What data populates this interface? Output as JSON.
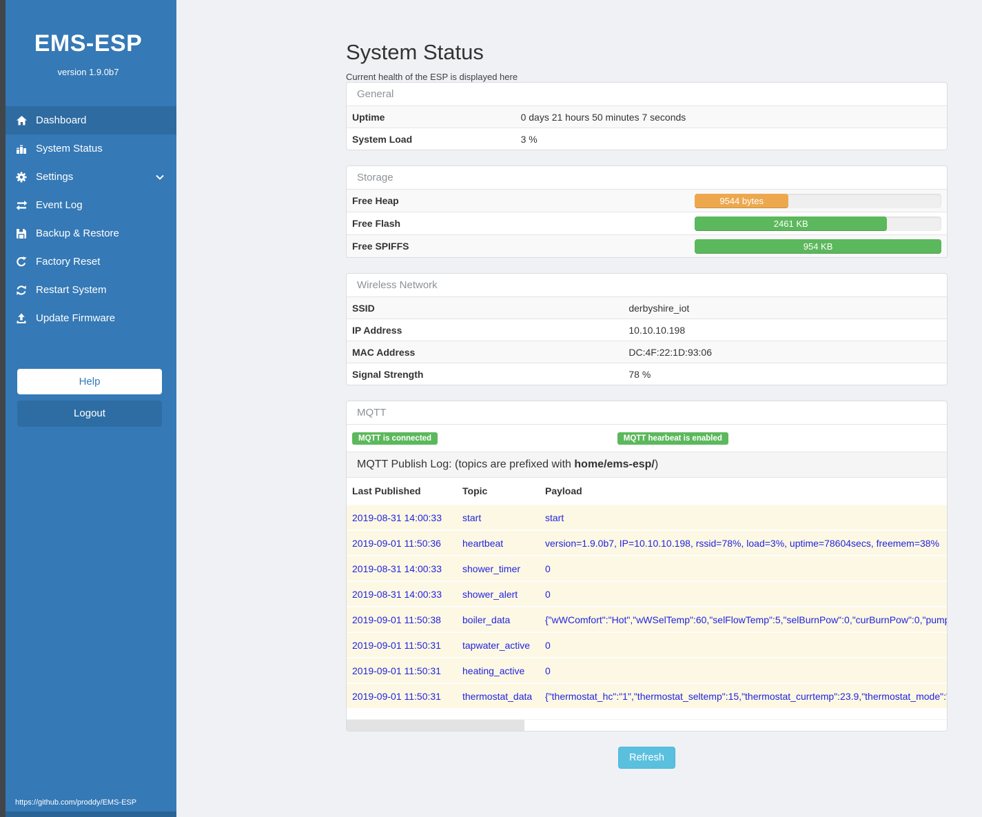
{
  "sidebar": {
    "title": "EMS-ESP",
    "version": "version 1.9.0b7",
    "menu": [
      {
        "label": "Dashboard",
        "icon": "home-icon",
        "active": true
      },
      {
        "label": "System Status",
        "icon": "system-status-icon",
        "active": false
      },
      {
        "label": "Settings",
        "icon": "gear-icon",
        "active": false,
        "chevron": true
      },
      {
        "label": "Event Log",
        "icon": "exchange-icon",
        "active": false
      },
      {
        "label": "Backup & Restore",
        "icon": "save-icon",
        "active": false
      },
      {
        "label": "Factory Reset",
        "icon": "rotate-icon",
        "active": false
      },
      {
        "label": "Restart System",
        "icon": "refresh-icon",
        "active": false
      },
      {
        "label": "Update Firmware",
        "icon": "upload-icon",
        "active": false
      }
    ],
    "help_label": "Help",
    "logout_label": "Logout",
    "footer_link": "https://github.com/proddy/EMS-ESP"
  },
  "page": {
    "title": "System Status",
    "subtitle": "Current health of the ESP is displayed here",
    "refresh_label": "Refresh"
  },
  "general": {
    "heading": "General",
    "rows": [
      {
        "label": "Uptime",
        "value": "0 days 21 hours 50 minutes 7 seconds"
      },
      {
        "label": "System Load",
        "value": "3 %"
      }
    ]
  },
  "storage": {
    "heading": "Storage",
    "rows": [
      {
        "label": "Free Heap",
        "bar_label": "9544 bytes",
        "percent": 38,
        "color": "#eda84e"
      },
      {
        "label": "Free Flash",
        "bar_label": "2461 KB",
        "percent": 78,
        "color": "#5cb85c"
      },
      {
        "label": "Free SPIFFS",
        "bar_label": "954 KB",
        "percent": 100,
        "color": "#5cb85c"
      }
    ]
  },
  "wireless": {
    "heading": "Wireless Network",
    "rows": [
      {
        "label": "SSID",
        "value": "derbyshire_iot"
      },
      {
        "label": "IP Address",
        "value": "10.10.10.198"
      },
      {
        "label": "MAC Address",
        "value": "DC:4F:22:1D:93:06"
      },
      {
        "label": "Signal Strength",
        "value": "78 %"
      }
    ]
  },
  "mqtt": {
    "heading": "MQTT",
    "badges": [
      "MQTT is connected",
      "MQTT hearbeat is enabled"
    ],
    "badge_color": "#5cb85c",
    "log_title_prefix": "MQTT Publish Log: (topics are prefixed with ",
    "log_title_bold": "home/ems-esp/",
    "log_title_suffix": ")",
    "columns": [
      "Last Published",
      "Topic",
      "Payload"
    ],
    "rows": [
      [
        "2019-08-31 14:00:33",
        "start",
        "start"
      ],
      [
        "2019-09-01 11:50:36",
        "heartbeat",
        "version=1.9.0b7, IP=10.10.10.198, rssid=78%, load=3%, uptime=78604secs, freemem=38%"
      ],
      [
        "2019-08-31 14:00:33",
        "shower_timer",
        "0"
      ],
      [
        "2019-08-31 14:00:33",
        "shower_alert",
        "0"
      ],
      [
        "2019-09-01 11:50:38",
        "boiler_data",
        "{\"wWComfort\":\"Hot\",\"wWSelTemp\":60,\"selFlowTemp\":5,\"selBurnPow\":0,\"curBurnPow\":0,\"pump"
      ],
      [
        "2019-09-01 11:50:31",
        "tapwater_active",
        "0"
      ],
      [
        "2019-09-01 11:50:31",
        "heating_active",
        "0"
      ],
      [
        "2019-09-01 11:50:31",
        "thermostat_data",
        "{\"thermostat_hc\":\"1\",\"thermostat_seltemp\":15,\"thermostat_currtemp\":23.9,\"thermostat_mode\":\""
      ]
    ]
  },
  "colors": {
    "sidebar_blue": "#3579b6",
    "sidebar_active": "#2d6ba1",
    "link_blue": "#2323e0",
    "refresh_blue": "#5bc0de",
    "bar_track": "#efefef"
  }
}
